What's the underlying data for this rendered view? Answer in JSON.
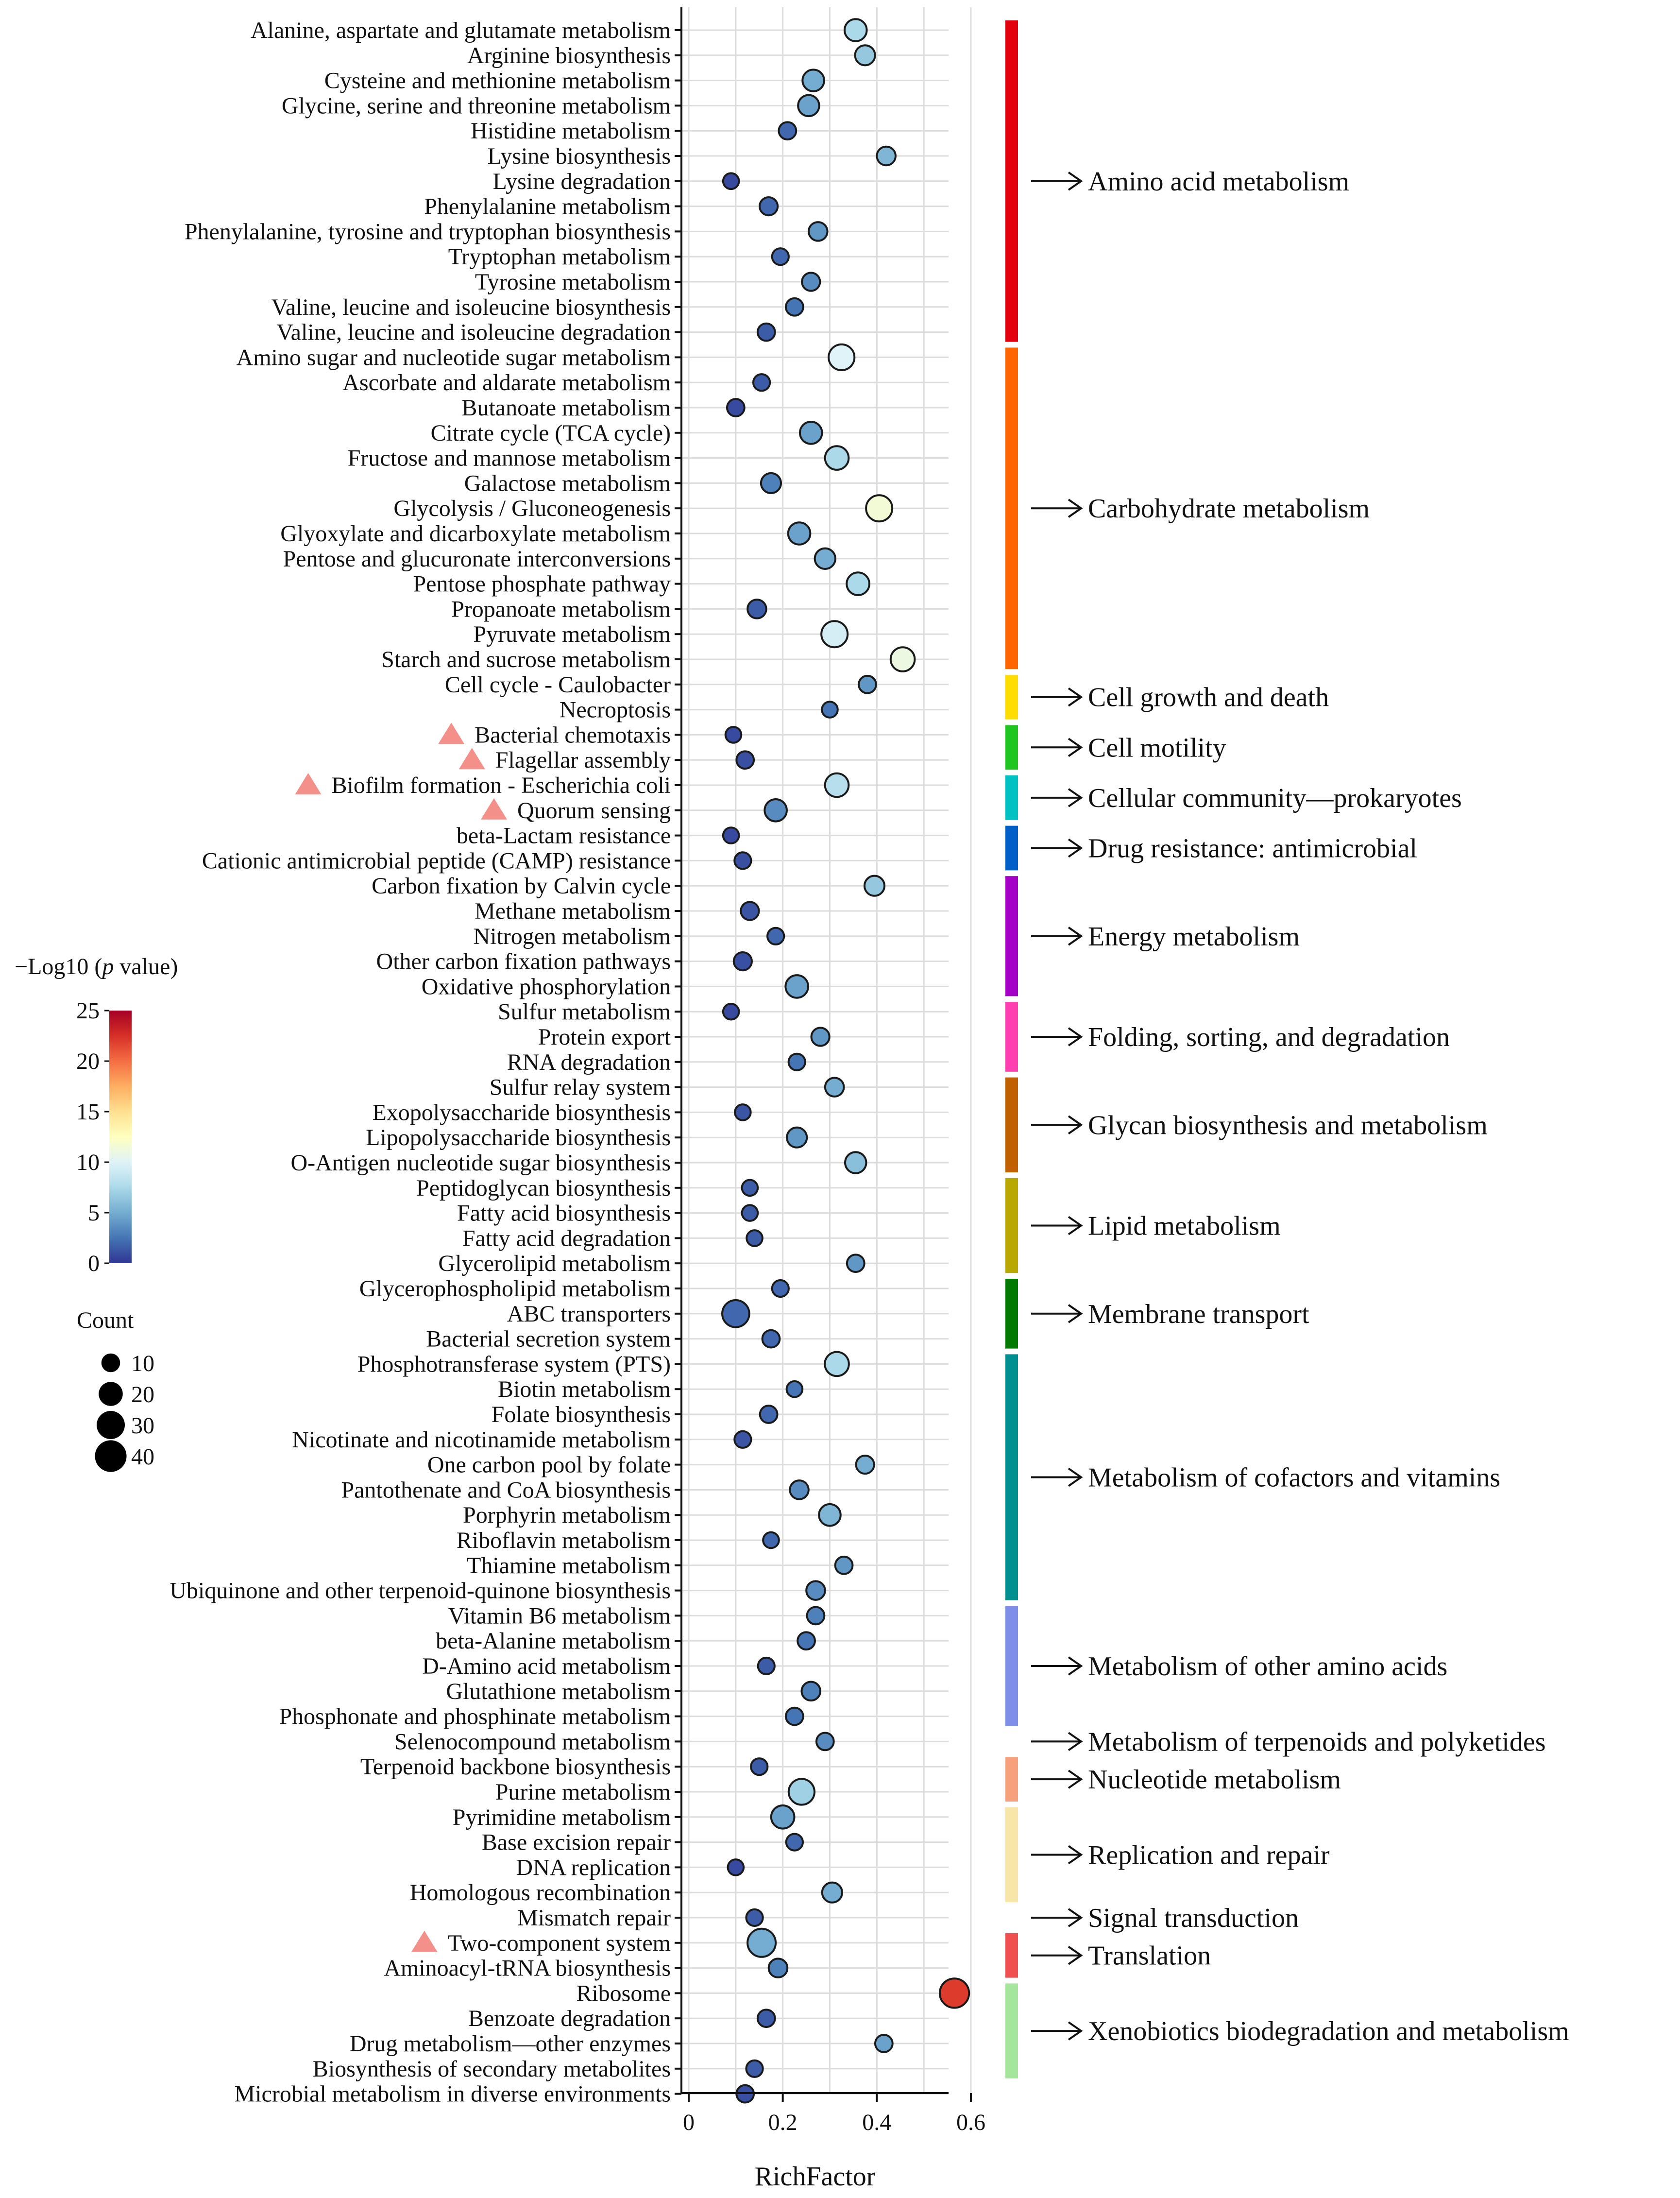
{
  "chart_data": {
    "type": "scatter",
    "xlabel": "RichFactor",
    "xlim": [
      0,
      0.65
    ],
    "xticks": [
      "0",
      "0.2",
      "0.4",
      "0.6"
    ],
    "x_tick_values": [
      0,
      0.2,
      0.4,
      0.6
    ],
    "color_scale": {
      "title_prefix": "−Log10 (",
      "title_italic": "p",
      "title_suffix": " value)",
      "range": [
        0,
        25
      ],
      "ticks": [
        "0",
        "5",
        "10",
        "15",
        "20",
        "25"
      ],
      "tick_values": [
        0,
        5,
        10,
        15,
        20,
        25
      ],
      "colors": [
        "#313695",
        "#4575b4",
        "#74add1",
        "#abd9e9",
        "#e0f3f8",
        "#ffffbf",
        "#fee090",
        "#fdae61",
        "#f46d43",
        "#d73027",
        "#a50026"
      ]
    },
    "size_legend": {
      "title": "Count",
      "labels": [
        "10",
        "20",
        "30",
        "40"
      ],
      "values": [
        10,
        20,
        30,
        40
      ]
    },
    "marker": {
      "color": "#f4908a",
      "meaning": "highlighted pathway"
    },
    "categories": [
      {
        "name": "Amino acid metabolism",
        "color": "#e3000f",
        "first": 0,
        "last": 12
      },
      {
        "name": "Carbohydrate metabolism",
        "color": "#ff6600",
        "first": 13,
        "last": 25
      },
      {
        "name": "Cell growth and death",
        "color": "#ffdd00",
        "first": 26,
        "last": 27
      },
      {
        "name": "Cell motility",
        "color": "#1fc61f",
        "first": 28,
        "last": 29
      },
      {
        "name": "Cellular community—prokaryotes",
        "color": "#00c2c2",
        "first": 30,
        "last": 31
      },
      {
        "name": "Drug resistance: antimicrobial",
        "color": "#0060c8",
        "first": 32,
        "last": 33
      },
      {
        "name": "Energy metabolism",
        "color": "#a400c8",
        "first": 34,
        "last": 38
      },
      {
        "name": "Folding, sorting, and degradation",
        "color": "#ff3fb0",
        "first": 39,
        "last": 41
      },
      {
        "name": "Glycan biosynthesis and metabolism",
        "color": "#c06000",
        "first": 42,
        "last": 45
      },
      {
        "name": "Lipid metabolism",
        "color": "#b8a800",
        "first": 46,
        "last": 49
      },
      {
        "name": "Membrane transport",
        "color": "#007a00",
        "first": 50,
        "last": 52
      },
      {
        "name": "Metabolism of cofactors and vitamins",
        "color": "#009090",
        "first": 53,
        "last": 62
      },
      {
        "name": "Metabolism of other amino acids",
        "color": "#7f8ee8",
        "first": 63,
        "last": 67
      },
      {
        "name": "Metabolism of terpenoids and polyketides",
        "color": "",
        "first": 68,
        "last": 68
      },
      {
        "name": "Nucleotide metabolism",
        "color": "#f7a07c",
        "first": 69,
        "last": 70
      },
      {
        "name": "Replication and repair",
        "color": "#f7e6a8",
        "first": 71,
        "last": 74
      },
      {
        "name": "Signal transduction",
        "color": "",
        "first": 75,
        "last": 75
      },
      {
        "name": "Translation",
        "color": "#f05050",
        "first": 76,
        "last": 77
      },
      {
        "name": "Xenobiotics biodegradation and metabolism",
        "color": "#a4e69c",
        "first": 78,
        "last": 81
      }
    ],
    "pathways": [
      {
        "name": "Alanine, aspartate and glutamate metabolism",
        "rich": 0.355,
        "count": 16,
        "logp": 7.5,
        "flag": false
      },
      {
        "name": "Arginine biosynthesis",
        "rich": 0.375,
        "count": 12,
        "logp": 6.5,
        "flag": false
      },
      {
        "name": "Cysteine and methionine metabolism",
        "rich": 0.265,
        "count": 15,
        "logp": 5.0,
        "flag": false
      },
      {
        "name": "Glycine, serine and threonine metabolism",
        "rich": 0.255,
        "count": 14,
        "logp": 4.5,
        "flag": false
      },
      {
        "name": "Histidine metabolism",
        "rich": 0.21,
        "count": 8,
        "logp": 2.0,
        "flag": false
      },
      {
        "name": "Lysine biosynthesis",
        "rich": 0.42,
        "count": 10,
        "logp": 5.5,
        "flag": false
      },
      {
        "name": "Lysine degradation",
        "rich": 0.09,
        "count": 6,
        "logp": 0.8,
        "flag": false
      },
      {
        "name": "Phenylalanine metabolism",
        "rich": 0.17,
        "count": 9,
        "logp": 2.0,
        "flag": false
      },
      {
        "name": "Phenylalanine, tyrosine and tryptophan biosynthesis",
        "rich": 0.275,
        "count": 10,
        "logp": 4.0,
        "flag": false
      },
      {
        "name": "Tryptophan metabolism",
        "rich": 0.195,
        "count": 7,
        "logp": 2.0,
        "flag": false
      },
      {
        "name": "Tyrosine metabolism",
        "rich": 0.26,
        "count": 9,
        "logp": 3.5,
        "flag": false
      },
      {
        "name": "Valine, leucine and isoleucine biosynthesis",
        "rich": 0.225,
        "count": 8,
        "logp": 2.5,
        "flag": false
      },
      {
        "name": "Valine, leucine and isoleucine degradation",
        "rich": 0.165,
        "count": 8,
        "logp": 1.5,
        "flag": false
      },
      {
        "name": "Amino sugar and nucleotide sugar metabolism",
        "rich": 0.325,
        "count": 24,
        "logp": 10.0,
        "flag": false
      },
      {
        "name": "Ascorbate and aldarate metabolism",
        "rich": 0.155,
        "count": 7,
        "logp": 1.5,
        "flag": false
      },
      {
        "name": "Butanoate metabolism",
        "rich": 0.1,
        "count": 8,
        "logp": 0.8,
        "flag": false
      },
      {
        "name": "Citrate cycle (TCA cycle)",
        "rich": 0.26,
        "count": 16,
        "logp": 4.5,
        "flag": false
      },
      {
        "name": "Fructose and mannose metabolism",
        "rich": 0.315,
        "count": 19,
        "logp": 7.5,
        "flag": false
      },
      {
        "name": "Galactose metabolism",
        "rich": 0.175,
        "count": 12,
        "logp": 3.0,
        "flag": false
      },
      {
        "name": "Glycolysis / Gluconeogenesis",
        "rich": 0.405,
        "count": 25,
        "logp": 11.5,
        "flag": false
      },
      {
        "name": "Glyoxylate and dicarboxylate metabolism",
        "rich": 0.235,
        "count": 16,
        "logp": 4.5,
        "flag": false
      },
      {
        "name": "Pentose and glucuronate interconversions",
        "rich": 0.29,
        "count": 13,
        "logp": 5.0,
        "flag": false
      },
      {
        "name": "Pentose phosphate pathway",
        "rich": 0.36,
        "count": 17,
        "logp": 7.5,
        "flag": false
      },
      {
        "name": "Propanoate metabolism",
        "rich": 0.145,
        "count": 10,
        "logp": 1.5,
        "flag": false
      },
      {
        "name": "Pyruvate metabolism",
        "rich": 0.31,
        "count": 25,
        "logp": 9.5,
        "flag": false
      },
      {
        "name": "Starch and sucrose metabolism",
        "rich": 0.455,
        "count": 20,
        "logp": 11.0,
        "flag": false
      },
      {
        "name": "Cell cycle - Caulobacter",
        "rich": 0.38,
        "count": 8,
        "logp": 4.0,
        "flag": false
      },
      {
        "name": "Necroptosis",
        "rich": 0.3,
        "count": 6,
        "logp": 2.5,
        "flag": false
      },
      {
        "name": "Bacterial chemotaxis",
        "rich": 0.095,
        "count": 6,
        "logp": 0.8,
        "flag": true
      },
      {
        "name": "Flagellar assembly",
        "rich": 0.12,
        "count": 8,
        "logp": 1.0,
        "flag": true
      },
      {
        "name": "Biofilm formation - Escherichia coli",
        "rich": 0.315,
        "count": 19,
        "logp": 8.0,
        "flag": true
      },
      {
        "name": "Quorum sensing",
        "rich": 0.185,
        "count": 16,
        "logp": 3.5,
        "flag": true
      },
      {
        "name": "beta-Lactam resistance",
        "rich": 0.09,
        "count": 6,
        "logp": 0.8,
        "flag": false
      },
      {
        "name": "Cationic antimicrobial peptide (CAMP) resistance",
        "rich": 0.115,
        "count": 7,
        "logp": 1.0,
        "flag": false
      },
      {
        "name": "Carbon fixation by Calvin cycle",
        "rich": 0.395,
        "count": 12,
        "logp": 6.5,
        "flag": false
      },
      {
        "name": "Methane metabolism",
        "rich": 0.13,
        "count": 9,
        "logp": 1.2,
        "flag": false
      },
      {
        "name": "Nitrogen metabolism",
        "rich": 0.185,
        "count": 7,
        "logp": 2.0,
        "flag": false
      },
      {
        "name": "Other carbon fixation pathways",
        "rich": 0.115,
        "count": 9,
        "logp": 1.0,
        "flag": false
      },
      {
        "name": "Oxidative phosphorylation",
        "rich": 0.23,
        "count": 17,
        "logp": 4.5,
        "flag": false
      },
      {
        "name": "Sulfur metabolism",
        "rich": 0.09,
        "count": 6,
        "logp": 0.8,
        "flag": false
      },
      {
        "name": "Protein export",
        "rich": 0.28,
        "count": 9,
        "logp": 4.0,
        "flag": false
      },
      {
        "name": "RNA degradation",
        "rich": 0.23,
        "count": 7,
        "logp": 2.5,
        "flag": false
      },
      {
        "name": "Sulfur relay system",
        "rich": 0.31,
        "count": 10,
        "logp": 5.0,
        "flag": false
      },
      {
        "name": "Exopolysaccharide biosynthesis",
        "rich": 0.115,
        "count": 6,
        "logp": 1.2,
        "flag": false
      },
      {
        "name": "Lipopolysaccharide biosynthesis",
        "rich": 0.23,
        "count": 12,
        "logp": 4.0,
        "flag": false
      },
      {
        "name": "O-Antigen nucleotide sugar biosynthesis",
        "rich": 0.355,
        "count": 14,
        "logp": 6.0,
        "flag": false
      },
      {
        "name": "Peptidoglycan biosynthesis",
        "rich": 0.13,
        "count": 6,
        "logp": 1.5,
        "flag": false
      },
      {
        "name": "Fatty acid biosynthesis",
        "rich": 0.13,
        "count": 6,
        "logp": 1.5,
        "flag": false
      },
      {
        "name": "Fatty acid degradation",
        "rich": 0.14,
        "count": 6,
        "logp": 1.5,
        "flag": false
      },
      {
        "name": "Glycerolipid metabolism",
        "rich": 0.355,
        "count": 8,
        "logp": 4.0,
        "flag": false
      },
      {
        "name": "Glycerophospholipid metabolism",
        "rich": 0.195,
        "count": 7,
        "logp": 2.0,
        "flag": false
      },
      {
        "name": "ABC transporters",
        "rich": 0.1,
        "count": 27,
        "logp": 2.0,
        "flag": false
      },
      {
        "name": "Bacterial secretion system",
        "rich": 0.175,
        "count": 8,
        "logp": 2.0,
        "flag": false
      },
      {
        "name": "Phosphotransferase system (PTS)",
        "rich": 0.315,
        "count": 20,
        "logp": 7.5,
        "flag": false
      },
      {
        "name": "Biotin metabolism",
        "rich": 0.225,
        "count": 6,
        "logp": 2.5,
        "flag": false
      },
      {
        "name": "Folate biosynthesis",
        "rich": 0.17,
        "count": 8,
        "logp": 2.0,
        "flag": false
      },
      {
        "name": "Nicotinate and nicotinamide metabolism",
        "rich": 0.115,
        "count": 7,
        "logp": 1.2,
        "flag": false
      },
      {
        "name": "One carbon pool by folate",
        "rich": 0.375,
        "count": 9,
        "logp": 5.0,
        "flag": false
      },
      {
        "name": "Pantothenate and CoA biosynthesis",
        "rich": 0.235,
        "count": 10,
        "logp": 3.5,
        "flag": false
      },
      {
        "name": "Porphyrin metabolism",
        "rich": 0.3,
        "count": 15,
        "logp": 5.5,
        "flag": false
      },
      {
        "name": "Riboflavin metabolism",
        "rich": 0.175,
        "count": 6,
        "logp": 2.0,
        "flag": false
      },
      {
        "name": "Thiamine metabolism",
        "rich": 0.33,
        "count": 8,
        "logp": 4.0,
        "flag": false
      },
      {
        "name": "Ubiquinone and other terpenoid-quinone biosynthesis",
        "rich": 0.27,
        "count": 10,
        "logp": 3.5,
        "flag": false
      },
      {
        "name": "Vitamin B6 metabolism",
        "rich": 0.27,
        "count": 8,
        "logp": 3.0,
        "flag": false
      },
      {
        "name": "beta-Alanine metabolism",
        "rich": 0.25,
        "count": 8,
        "logp": 2.5,
        "flag": false
      },
      {
        "name": "D-Amino acid metabolism",
        "rich": 0.165,
        "count": 7,
        "logp": 1.5,
        "flag": false
      },
      {
        "name": "Glutathione metabolism",
        "rich": 0.26,
        "count": 10,
        "logp": 3.0,
        "flag": false
      },
      {
        "name": "Phosphonate and phosphinate metabolism",
        "rich": 0.225,
        "count": 8,
        "logp": 2.5,
        "flag": false
      },
      {
        "name": "Selenocompound metabolism",
        "rich": 0.29,
        "count": 8,
        "logp": 3.5,
        "flag": false
      },
      {
        "name": "Terpenoid backbone biosynthesis",
        "rich": 0.15,
        "count": 7,
        "logp": 1.5,
        "flag": false
      },
      {
        "name": "Purine metabolism",
        "rich": 0.24,
        "count": 24,
        "logp": 7.0,
        "flag": false
      },
      {
        "name": "Pyrimidine metabolism",
        "rich": 0.2,
        "count": 18,
        "logp": 4.5,
        "flag": false
      },
      {
        "name": "Base excision repair",
        "rich": 0.225,
        "count": 7,
        "logp": 2.0,
        "flag": false
      },
      {
        "name": "DNA replication",
        "rich": 0.1,
        "count": 6,
        "logp": 0.8,
        "flag": false
      },
      {
        "name": "Homologous recombination",
        "rich": 0.305,
        "count": 12,
        "logp": 5.0,
        "flag": false
      },
      {
        "name": "Mismatch repair",
        "rich": 0.14,
        "count": 7,
        "logp": 1.5,
        "flag": false
      },
      {
        "name": "Two-component system",
        "rich": 0.155,
        "count": 30,
        "logp": 5.0,
        "flag": true
      },
      {
        "name": "Aminoacyl-tRNA biosynthesis",
        "rich": 0.19,
        "count": 10,
        "logp": 3.0,
        "flag": false
      },
      {
        "name": "Ribosome",
        "rich": 0.565,
        "count": 33,
        "logp": 22.0,
        "flag": false
      },
      {
        "name": "Benzoate degradation",
        "rich": 0.165,
        "count": 8,
        "logp": 1.5,
        "flag": false
      },
      {
        "name": "Drug metabolism—other enzymes",
        "rich": 0.415,
        "count": 8,
        "logp": 4.5,
        "flag": false
      },
      {
        "name": "Biosynthesis of secondary metabolites",
        "rich": 0.14,
        "count": 7,
        "logp": 1.5,
        "flag": false
      },
      {
        "name": "Microbial metabolism in diverse environments",
        "rich": 0.12,
        "count": 8,
        "logp": 1.0,
        "flag": false
      }
    ]
  }
}
